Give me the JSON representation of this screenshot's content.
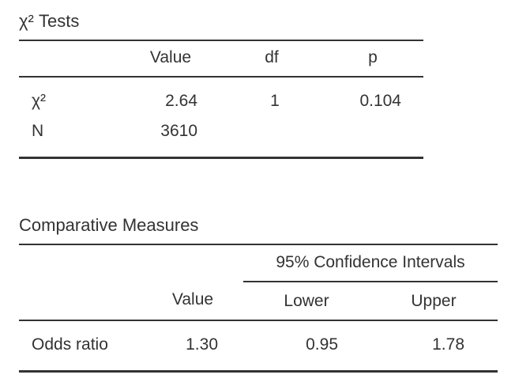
{
  "chi_table": {
    "title": "χ² Tests",
    "headers": {
      "value": "Value",
      "df": "df",
      "p": "p"
    },
    "rows": [
      {
        "label": "χ²",
        "value": "2.64",
        "df": "1",
        "p": "0.104"
      },
      {
        "label": "N",
        "value": "3610",
        "df": "",
        "p": ""
      }
    ]
  },
  "comp_table": {
    "title": "Comparative Measures",
    "ci_header": "95% Confidence Intervals",
    "headers": {
      "value": "Value",
      "lower": "Lower",
      "upper": "Upper"
    },
    "rows": [
      {
        "label": "Odds ratio",
        "value": "1.30",
        "lower": "0.95",
        "upper": "1.78"
      }
    ]
  }
}
